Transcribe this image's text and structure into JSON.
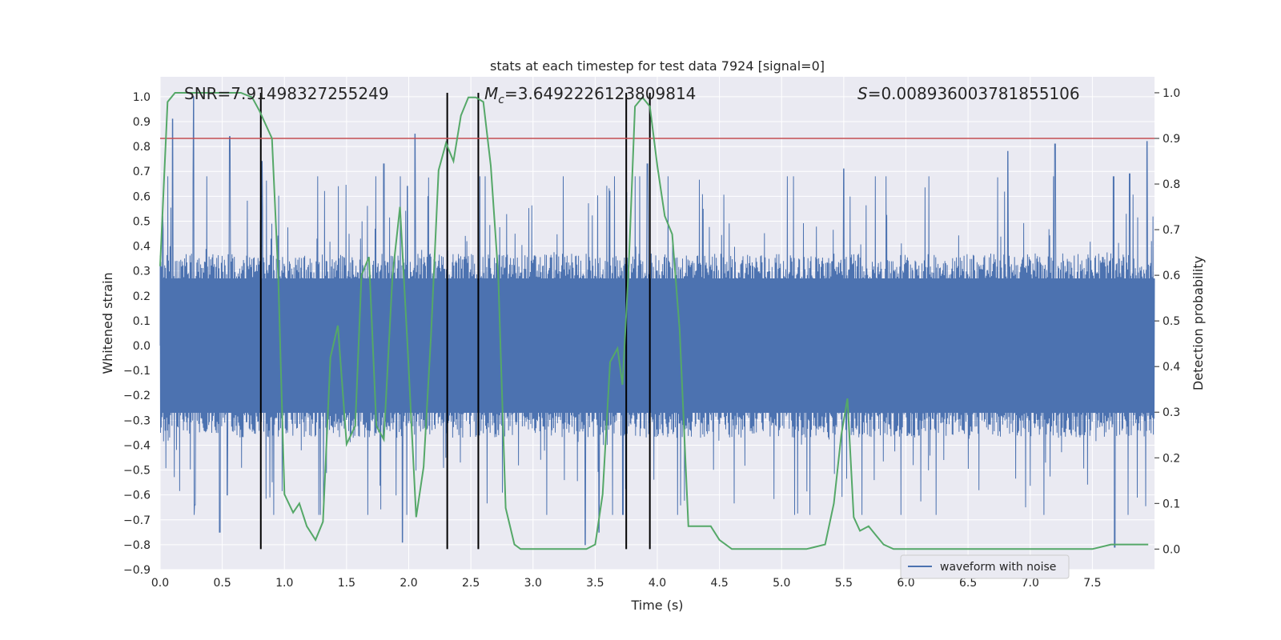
{
  "chart_data": {
    "type": "line",
    "title": "stats at each timestep for test data 7924 [signal=0]",
    "xlabel": "Time (s)",
    "ylabel": "Whitened strain",
    "y2label": "Detection probability",
    "xlim": [
      0,
      8.0
    ],
    "ylim": [
      -0.9,
      1.08
    ],
    "y2lim": [
      -0.045,
      1.035
    ],
    "x_ticks": [
      0.0,
      0.5,
      1.0,
      1.5,
      2.0,
      2.5,
      3.0,
      3.5,
      4.0,
      4.5,
      5.0,
      5.5,
      6.0,
      6.5,
      7.0,
      7.5
    ],
    "x_tick_labels": [
      "0.0",
      "0.5",
      "1.0",
      "1.5",
      "2.0",
      "2.5",
      "3.0",
      "3.5",
      "4.0",
      "4.5",
      "5.0",
      "5.5",
      "6.0",
      "6.5",
      "7.0",
      "7.5"
    ],
    "y_ticks": [
      1.0,
      0.9,
      0.8,
      0.7,
      0.6,
      0.5,
      0.4,
      0.3,
      0.2,
      0.1,
      0.0,
      -0.1,
      -0.2,
      -0.3,
      -0.4,
      -0.5,
      -0.6,
      -0.7,
      -0.8,
      -0.9
    ],
    "y_tick_labels": [
      "1.0",
      "0.9",
      "0.8",
      "0.7",
      "0.6",
      "0.5",
      "0.4",
      "0.3",
      "0.2",
      "0.1",
      "0.0",
      "−0.1",
      "−0.2",
      "−0.3",
      "−0.4",
      "−0.5",
      "−0.6",
      "−0.7",
      "−0.8",
      "−0.9"
    ],
    "y2_ticks": [
      1.0,
      0.9,
      0.8,
      0.7,
      0.6,
      0.5,
      0.4,
      0.3,
      0.2,
      0.1,
      0.0
    ],
    "y2_tick_labels": [
      "1.0",
      "0.9",
      "0.8",
      "0.7",
      "0.6",
      "0.5",
      "0.4",
      "0.3",
      "0.2",
      "0.1",
      "0.0"
    ],
    "annotations": {
      "snr": "SNR=7.91498327255249",
      "mc_symbol": "M",
      "mc_subscript": "c",
      "mc_value": "=3.6492226123809814",
      "s_symbol": "S",
      "s_value": "=0.008936003781855106"
    },
    "legend": {
      "label": "waveform with noise",
      "placement": "lower-right"
    },
    "grid": true,
    "colors": {
      "background": "#eaeaf2",
      "grid": "#ffffff",
      "waveform": "#4c72b0",
      "probability": "#55a868",
      "threshold": "#c44e52",
      "markers": "#000000"
    },
    "threshold_probability": 0.9,
    "vertical_markers_x": [
      0.81,
      2.31,
      2.56,
      3.75,
      3.94
    ],
    "waveform_envelope": {
      "peak_times": [
        0.02,
        0.1,
        0.27,
        0.56,
        0.82,
        1.8,
        1.99,
        2.05,
        3.92,
        5.5,
        6.82,
        7.2,
        7.8,
        7.94
      ],
      "peak_values": [
        0.52,
        0.91,
        1.0,
        0.84,
        0.74,
        0.73,
        0.64,
        0.85,
        0.73,
        0.71,
        0.78,
        0.81,
        0.69,
        0.82
      ],
      "trough_times": [
        0.28,
        0.48,
        0.54,
        1.95,
        3.42,
        3.53,
        7.68
      ],
      "trough_values": [
        -0.64,
        -0.75,
        -0.6,
        -0.79,
        -0.8,
        -0.75,
        -0.81
      ]
    },
    "series": [
      {
        "name": "waveform with noise",
        "kind": "noisy-strain",
        "amplitude_range": [
          -0.81,
          1.0
        ]
      },
      {
        "kind": "detection-probability",
        "x": [
          0.0,
          0.06,
          0.12,
          0.25,
          0.5,
          0.65,
          0.74,
          0.8,
          0.9,
          0.95,
          1.0,
          1.07,
          1.12,
          1.18,
          1.25,
          1.31,
          1.37,
          1.43,
          1.5,
          1.57,
          1.62,
          1.68,
          1.74,
          1.8,
          1.87,
          1.93,
          1.99,
          2.06,
          2.12,
          2.18,
          2.24,
          2.3,
          2.36,
          2.42,
          2.48,
          2.54,
          2.6,
          2.66,
          2.72,
          2.78,
          2.85,
          2.9,
          3.0,
          3.3,
          3.43,
          3.5,
          3.56,
          3.62,
          3.68,
          3.72,
          3.77,
          3.82,
          3.88,
          3.94,
          4.0,
          4.06,
          4.12,
          4.18,
          4.25,
          4.31,
          4.37,
          4.43,
          4.5,
          4.6,
          4.8,
          5.0,
          5.2,
          5.35,
          5.42,
          5.48,
          5.53,
          5.58,
          5.63,
          5.7,
          5.76,
          5.82,
          5.9,
          6.0,
          6.5,
          7.0,
          7.5,
          7.65,
          7.8,
          7.95
        ],
        "y": [
          0.62,
          0.98,
          1.0,
          1.0,
          1.0,
          1.0,
          0.99,
          0.96,
          0.9,
          0.6,
          0.12,
          0.08,
          0.1,
          0.05,
          0.02,
          0.06,
          0.42,
          0.49,
          0.23,
          0.27,
          0.6,
          0.64,
          0.27,
          0.24,
          0.6,
          0.75,
          0.45,
          0.07,
          0.18,
          0.47,
          0.83,
          0.89,
          0.85,
          0.95,
          0.99,
          0.99,
          0.98,
          0.84,
          0.6,
          0.09,
          0.01,
          0.0,
          0.0,
          0.0,
          0.0,
          0.01,
          0.12,
          0.41,
          0.44,
          0.36,
          0.62,
          0.97,
          0.99,
          0.97,
          0.84,
          0.73,
          0.69,
          0.48,
          0.05,
          0.05,
          0.05,
          0.05,
          0.02,
          0.0,
          0.0,
          0.0,
          0.0,
          0.01,
          0.1,
          0.25,
          0.33,
          0.07,
          0.04,
          0.05,
          0.03,
          0.01,
          0.0,
          0.0,
          0.0,
          0.0,
          0.0,
          0.01,
          0.01,
          0.01
        ]
      }
    ]
  }
}
